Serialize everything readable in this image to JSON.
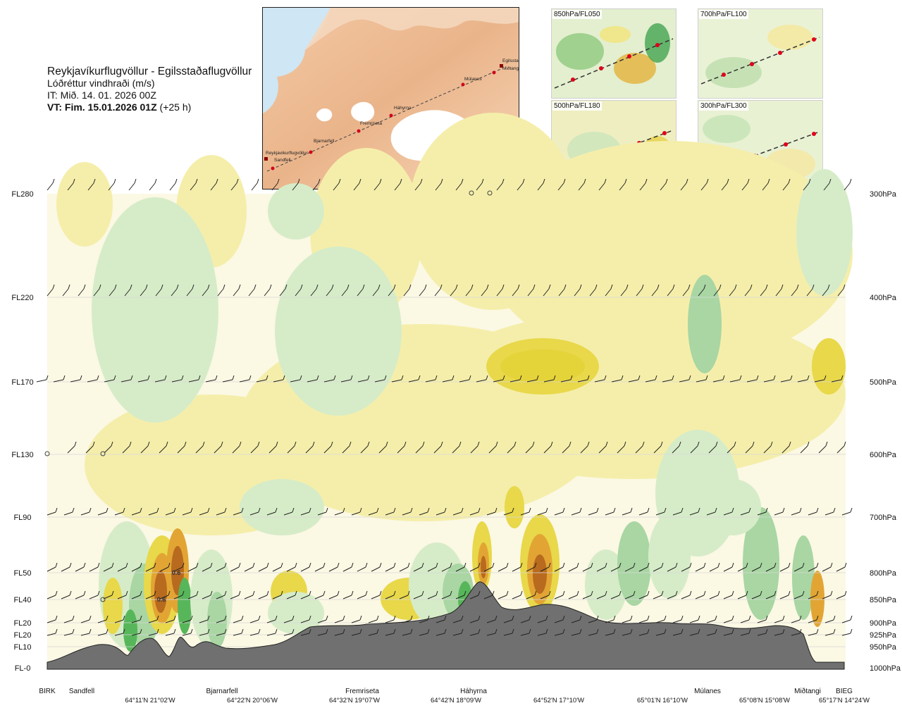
{
  "header": {
    "title": "Reykjavíkurflugvöllur - Egilsstaðaflugvöllur",
    "subtitle": "Lóðréttur vindhraði (m/s)",
    "issue_time": "IT: Mið. 14. 01. 2026 00Z",
    "valid_time_bold": "VT: Fim. 15.01.2026 01Z",
    "valid_time_lead": "(+25 h)"
  },
  "route_map": {
    "points": [
      {
        "label": "Reykjavikurflugvöllur"
      },
      {
        "label": "Sandfell"
      },
      {
        "label": "Bjarnarfell"
      },
      {
        "label": "Fremriseta"
      },
      {
        "label": "Háhyrna"
      },
      {
        "label": "Múlanes"
      },
      {
        "label": "Egilsstaðir"
      },
      {
        "label": "Miðtangi"
      }
    ]
  },
  "mini_maps": [
    {
      "label": "850hPa/FL050"
    },
    {
      "label": "700hPa/FL100"
    },
    {
      "label": "500hPa/FL180"
    },
    {
      "label": "300hPa/FL300"
    }
  ],
  "colors": {
    "strong_up": "#b86a1e",
    "moderate_up": "#e2a534",
    "weak_up": "#e8d84a",
    "very_weak_up": "#f5eeaa",
    "neutral": "#fbf8e4",
    "very_weak_down": "#d6ecc8",
    "weak_down": "#a9d6a3",
    "moderate_down": "#58b65a",
    "strong_down": "#1f8c2e",
    "terrain": "#707070"
  },
  "chart_data": {
    "type": "heatmap",
    "title": "Lóðréttur vindhraði (m/s)",
    "left_axis_labels": [
      "FL280",
      "FL220",
      "FL170",
      "FL130",
      "FL90",
      "FL50",
      "FL40",
      "FL20",
      "FL20",
      "FL10",
      "FL-0"
    ],
    "right_axis_labels": [
      "300hPa",
      "400hPa",
      "500hPa",
      "600hPa",
      "700hPa",
      "800hPa",
      "850hPa",
      "900hPa",
      "925hPa",
      "950hPa",
      "1000hPa"
    ],
    "pressure_levels_hpa": [
      300,
      400,
      500,
      600,
      700,
      800,
      850,
      900,
      925,
      950,
      1000
    ],
    "stations": [
      "BIRK",
      "Sandfell",
      "Bjarnarfell",
      "Fremriseta",
      "Háhyrna",
      "Múlanes",
      "Miðtangi",
      "BIEG"
    ],
    "coordinates": [
      "64°11'N 21°02'W",
      "64°22'N 20°06'W",
      "64°32'N 19°07'W",
      "64°42'N 18°09'W",
      "64°52'N 17°10'W",
      "65°01'N 16°10'W",
      "65°08'N 15°08'W",
      "65°17'N 14°24'W"
    ],
    "annotations": [
      {
        "text": "0.6",
        "near_station": "Sandfell",
        "level_hpa": 800
      },
      {
        "text": "0.6",
        "near_station": "Sandfell",
        "level_hpa": 850
      }
    ]
  }
}
